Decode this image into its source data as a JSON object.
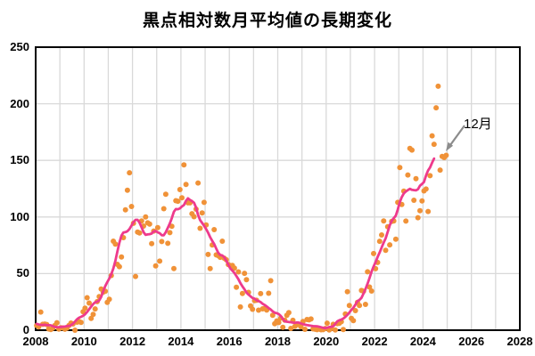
{
  "chart_data": {
    "type": "scatter",
    "title": "黒点相対数月平均値の長期変化",
    "x_axis": {
      "min": 2008,
      "max": 2028,
      "tick_labels": [
        "2008",
        "2010",
        "2012",
        "2014",
        "2016",
        "2018",
        "2020",
        "2022",
        "2024",
        "2026",
        "2028"
      ],
      "gridline_every_years": 1
    },
    "y_axis": {
      "min": 0,
      "max": 250,
      "tick_labels": [
        "0",
        "50",
        "100",
        "150",
        "200",
        "250"
      ],
      "gridline_every": 50
    },
    "grid": "on",
    "legend": "none",
    "colors": {
      "dot": "#F09238",
      "smoothed_line": "#EE3A8C",
      "grid": "#D9D9D9",
      "axis_frame": "#000000",
      "arrow": "#8C8C8C"
    },
    "series": [
      {
        "name": "monthly-mean-sunspot-number",
        "style": "scatter",
        "start_year": 2008,
        "start_month": 1,
        "values": [
          4.1,
          2.9,
          16.0,
          5.2,
          5.4,
          5.0,
          1.1,
          0.6,
          1.8,
          4.2,
          6.6,
          1.0,
          2.2,
          2.0,
          0.9,
          1.8,
          4.2,
          6.3,
          5.5,
          0.0,
          7.1,
          7.7,
          6.9,
          16.3,
          19.5,
          28.7,
          24.0,
          10.4,
          13.9,
          18.8,
          25.2,
          29.6,
          36.4,
          33.6,
          34.4,
          24.5,
          27.3,
          48.3,
          78.6,
          76.1,
          58.2,
          56.1,
          64.6,
          81.8,
          106.4,
          123.6,
          139.1,
          109.3,
          94.4,
          47.5,
          86.6,
          85.9,
          96.5,
          92.0,
          100.1,
          94.8,
          93.7,
          76.5,
          87.6,
          56.8,
          90.6,
          61.0,
          78.3,
          107.3,
          120.1,
          76.7,
          86.2,
          91.8,
          54.5,
          114.4,
          113.9,
          124.2,
          117.0,
          146.1,
          128.7,
          112.5,
          112.5,
          102.9,
          100.2,
          106.9,
          130.0,
          90.0,
          103.6,
          112.9,
          93.0,
          66.9,
          54.5,
          75.3,
          88.8,
          66.5,
          65.8,
          64.4,
          78.6,
          63.6,
          62.2,
          58.0,
          57.0,
          57.2,
          54.9,
          37.9,
          51.5,
          20.5,
          32.4,
          50.2,
          44.6,
          33.4,
          21.4,
          18.5,
          26.1,
          26.4,
          17.7,
          32.3,
          18.9,
          19.2,
          17.8,
          32.6,
          43.7,
          13.2,
          5.7,
          8.2,
          6.8,
          10.7,
          2.5,
          8.9,
          13.1,
          15.6,
          1.6,
          8.7,
          3.3,
          4.9,
          4.9,
          3.1,
          7.7,
          0.8,
          9.4,
          9.1,
          9.9,
          1.2,
          0.9,
          0.5,
          1.1,
          0.4,
          0.5,
          1.5,
          6.2,
          0.2,
          1.5,
          5.2,
          0.2,
          5.8,
          6.1,
          7.5,
          0.6,
          14.4,
          34.0,
          21.8,
          10.4,
          8.4,
          17.3,
          24.5,
          21.8,
          35.1,
          34.4,
          22.8,
          51.6,
          38.1,
          34.6,
          67.7,
          54.3,
          59.8,
          78.5,
          84.1,
          96.5,
          70.5,
          91.4,
          75.4,
          96.1,
          96.5,
          80.4,
          112.9,
          143.6,
          111.0,
          122.8,
          96.4,
          137.1,
          160.5,
          159.1,
          114.8,
          133.9,
          99.4,
          105.5,
          114.2,
          123.0,
          124.7,
          104.9,
          136.5,
          171.7,
          164.2,
          196.5,
          215.5,
          141.4,
          153.5,
          152.5,
          154.5
        ]
      },
      {
        "name": "smoothed-line",
        "style": "line",
        "derived": "13-month smoothed of monthly-mean-sunspot-number, ending 6 months before last point"
      }
    ],
    "annotation": {
      "label": "12月"
    }
  }
}
